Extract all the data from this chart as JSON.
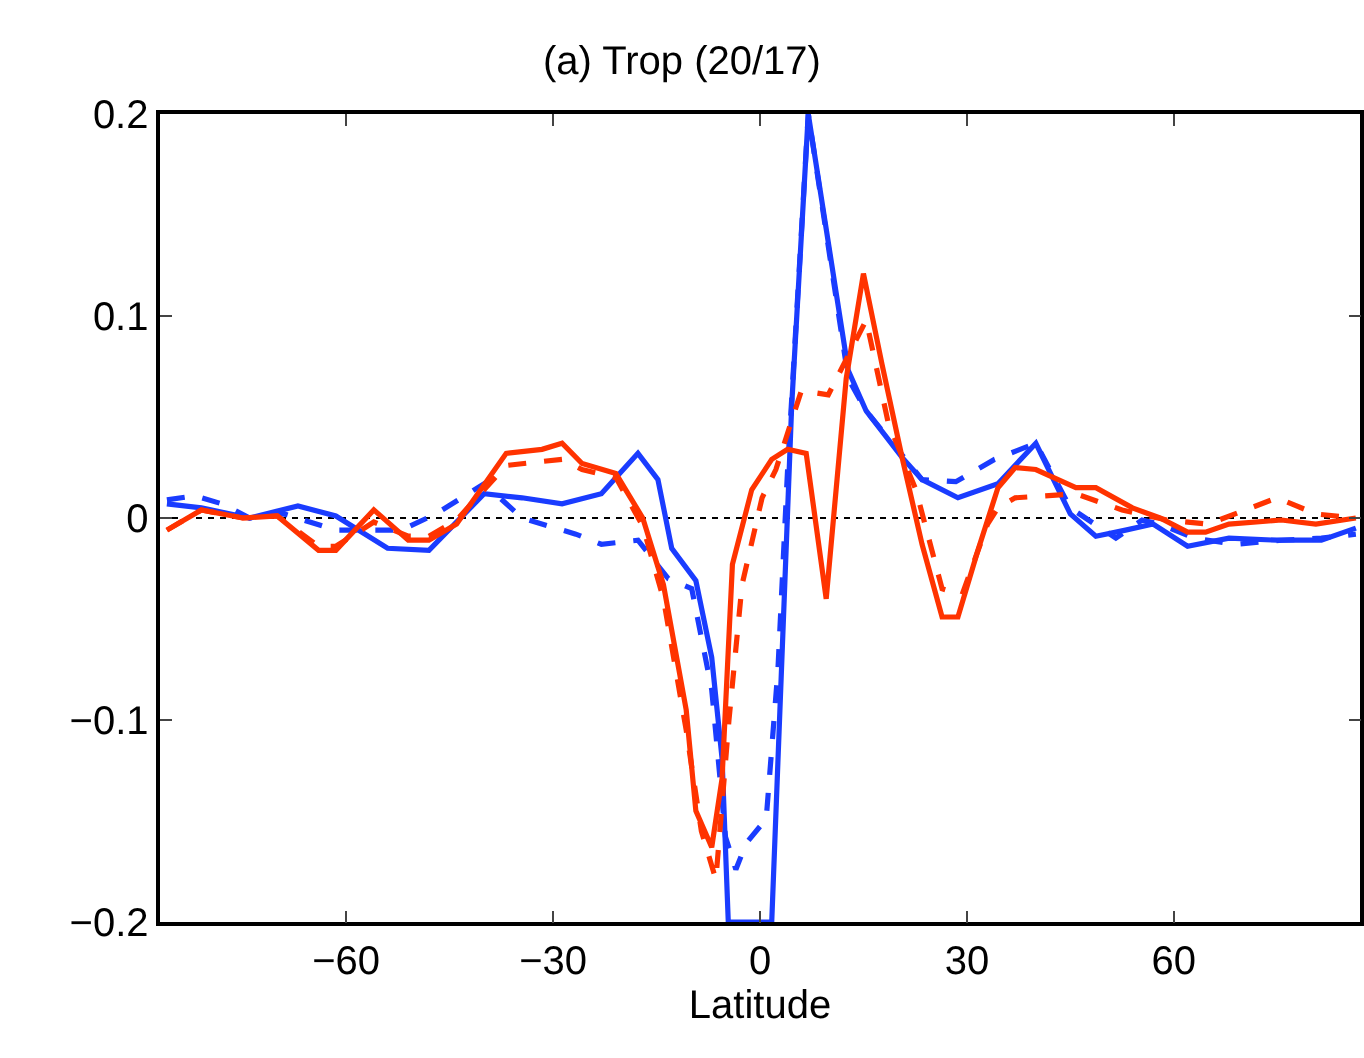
{
  "chart_data": {
    "type": "line",
    "title": "(a) Trop (20/17)",
    "xlabel": "Latitude",
    "xlim": [
      -87,
      87
    ],
    "xticks": [
      {
        "value": -60,
        "label": "−60"
      },
      {
        "value": -30,
        "label": "−30"
      },
      0,
      30,
      60
    ],
    "ylim": [
      -0.2,
      0.2
    ],
    "yticks": [
      {
        "value": -0.2,
        "label": "−0.2"
      },
      {
        "value": -0.1,
        "label": "−0.1"
      },
      0,
      0.1,
      0.2
    ],
    "grid": false,
    "ref_lines": [
      {
        "axis": "y",
        "value": 0,
        "color": "#000000",
        "line_style": "dotted"
      }
    ],
    "series": [
      {
        "color": "#1a3cff",
        "line_style": "solid",
        "x": [
          -86,
          -81,
          -74,
          -67,
          -61.5,
          -54,
          -48,
          -40,
          -34.5,
          -28.7,
          -23,
          -17.7,
          -14.8,
          -12.8,
          -9.3,
          -7,
          -5.5,
          -4.6,
          1.7,
          4.6,
          7,
          12.8,
          15.4,
          20.6,
          23.5,
          28.7,
          34.5,
          40,
          45,
          48.7,
          53,
          57,
          62,
          68,
          75,
          81.4,
          86.4
        ],
        "values": [
          0.007,
          0.005,
          0,
          0.006,
          0.001,
          -0.015,
          -0.016,
          0.012,
          0.01,
          0.007,
          0.012,
          0.032,
          0.019,
          -0.015,
          -0.031,
          -0.069,
          -0.119,
          -0.2,
          -0.2,
          0.056,
          0.2,
          0.073,
          0.053,
          0.03,
          0.019,
          0.01,
          0.017,
          0.037,
          0.002,
          -0.009,
          -0.006,
          -0.003,
          -0.014,
          -0.01,
          -0.011,
          -0.011,
          -0.005
        ]
      },
      {
        "color": "#1a3cff",
        "line_style": "dashed",
        "x": [
          -86,
          -82,
          -78,
          -74,
          -69,
          -61.5,
          -52,
          -47,
          -40,
          -34.5,
          -26.7,
          -23,
          -17.7,
          -13.3,
          -9.9,
          -7,
          -5,
          -3.5,
          -2,
          0.9,
          2.6,
          4,
          7,
          12.8,
          15.4,
          23.5,
          28.4,
          34,
          40,
          45,
          51.6,
          55.4,
          58,
          63,
          69,
          75.6,
          81.4,
          86.4
        ],
        "values": [
          0.009,
          0.011,
          0.007,
          0,
          0.002,
          -0.006,
          -0.006,
          0.002,
          0.017,
          0,
          -0.008,
          -0.013,
          -0.011,
          -0.03,
          -0.035,
          -0.085,
          -0.158,
          -0.174,
          -0.161,
          -0.149,
          -0.075,
          0.024,
          0.2,
          0.069,
          0.053,
          0.019,
          0.018,
          0.029,
          0.037,
          0.005,
          -0.01,
          -0.001,
          -0.003,
          -0.01,
          -0.013,
          -0.011,
          -0.01,
          -0.008
        ]
      },
      {
        "color": "#ff3300",
        "line_style": "solid",
        "x": [
          -86,
          -81,
          -75,
          -70,
          -64,
          -61.5,
          -56,
          -51,
          -48,
          -44,
          -36.8,
          -31.6,
          -28.7,
          -25.8,
          -20.9,
          -17,
          -14,
          -10.7,
          -9.3,
          -7,
          -5.5,
          -4,
          -1.2,
          1.7,
          4,
          6.7,
          9.6,
          12.5,
          15,
          17.7,
          20.6,
          23.5,
          26.4,
          28.7,
          31.6,
          34.5,
          37,
          40,
          45.8,
          48.7,
          54,
          58,
          62,
          64.6,
          68,
          75.6,
          80.6,
          86.4
        ],
        "values": [
          -0.006,
          0.004,
          0,
          0.001,
          -0.016,
          -0.016,
          0.004,
          -0.011,
          -0.011,
          -0.003,
          0.032,
          0.034,
          0.037,
          0.027,
          0.022,
          0,
          -0.033,
          -0.095,
          -0.145,
          -0.163,
          -0.129,
          -0.023,
          0.014,
          0.029,
          0.034,
          0.032,
          -0.04,
          0.069,
          0.121,
          0.076,
          0.03,
          -0.013,
          -0.049,
          -0.049,
          -0.016,
          0.015,
          0.025,
          0.024,
          0.015,
          0.015,
          0.005,
          0,
          -0.007,
          -0.007,
          -0.003,
          -0.001,
          -0.003,
          0
        ]
      },
      {
        "color": "#ff3300",
        "line_style": "dashed",
        "x": [
          -86,
          -81,
          -75,
          -70,
          -64,
          -61.5,
          -56,
          -51,
          -48,
          -44,
          -36.8,
          -31.6,
          -28.7,
          -25.8,
          -20.9,
          -17,
          -14,
          -10.7,
          -8.5,
          -6.4,
          -4.5,
          -2.6,
          0.3,
          2.3,
          6,
          9.9,
          15.4,
          18.6,
          22.6,
          26.4,
          29.3,
          33,
          34.5,
          37,
          45.8,
          52.5,
          59,
          65,
          75,
          80.6,
          86.4
        ],
        "values": [
          -0.006,
          0.004,
          0,
          0.001,
          -0.014,
          -0.014,
          -0.002,
          -0.009,
          -0.009,
          -0.001,
          0.026,
          0.028,
          0.029,
          0.024,
          0.02,
          -0.004,
          -0.04,
          -0.105,
          -0.155,
          -0.179,
          -0.1,
          -0.033,
          0.01,
          0.024,
          0.063,
          0.061,
          0.098,
          0.047,
          0.014,
          -0.035,
          -0.038,
          -0.003,
          0.005,
          0.01,
          0.012,
          0.004,
          -0.001,
          -0.003,
          0.01,
          0.002,
          0
        ]
      }
    ]
  }
}
